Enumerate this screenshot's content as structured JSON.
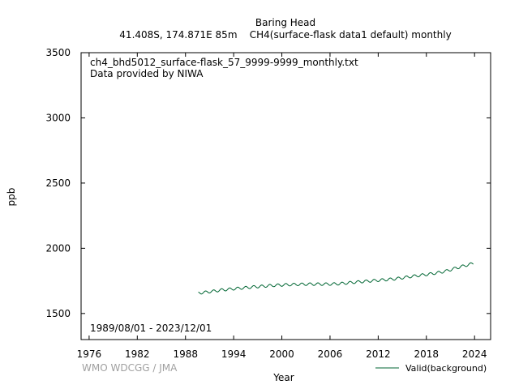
{
  "chart_data": {
    "type": "line",
    "title": "Baring Head",
    "subtitle": "41.408S, 174.871E 85m    CH4(surface-flask data1 default) monthly",
    "file_label": "ch4_bhd5012_surface-flask_57_9999-9999_monthly.txt",
    "provider_label": "Data provided by NIWA",
    "date_range_label": "1989/08/01 - 2023/12/01",
    "watermark": "WMO WDCGG / JMA",
    "xlabel": "Year",
    "ylabel": "ppb",
    "xlim": [
      1975,
      2026
    ],
    "ylim": [
      1300,
      3500
    ],
    "x_ticks": [
      1976,
      1982,
      1988,
      1994,
      2000,
      2006,
      2012,
      2018,
      2024
    ],
    "y_ticks": [
      1500,
      2000,
      2500,
      3000,
      3500
    ],
    "grid": false,
    "legend_position": "bottom-right",
    "series": [
      {
        "name": "Valid(background)",
        "color": "#006633",
        "x": [
          1989.6,
          1990.5,
          1991.5,
          1992.5,
          1993.5,
          1994.5,
          1995.5,
          1996.5,
          1997.5,
          1998.5,
          1999.5,
          2000.5,
          2001.5,
          2002.5,
          2003.5,
          2004.5,
          2005.5,
          2006.5,
          2007.5,
          2008.5,
          2009.5,
          2010.5,
          2011.5,
          2012.5,
          2013.5,
          2014.5,
          2015.5,
          2016.5,
          2017.5,
          2018.5,
          2019.5,
          2020.5,
          2021.5,
          2022.5,
          2023.9
        ],
        "y": [
          1657,
          1663,
          1671,
          1680,
          1686,
          1692,
          1698,
          1704,
          1708,
          1713,
          1717,
          1720,
          1722,
          1724,
          1725,
          1725,
          1725,
          1726,
          1730,
          1736,
          1742,
          1747,
          1752,
          1757,
          1762,
          1769,
          1778,
          1787,
          1795,
          1803,
          1813,
          1826,
          1845,
          1862,
          1885
        ],
        "seasonal_amplitude": 10
      }
    ]
  }
}
